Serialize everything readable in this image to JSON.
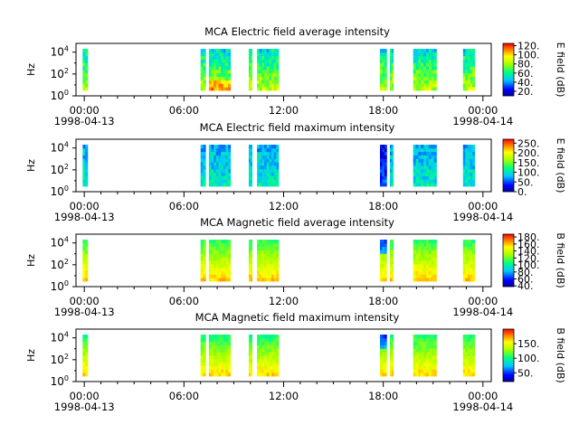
{
  "chart_data": [
    {
      "type": "heatmap",
      "title": "MCA  Electric field average intensity",
      "ylabel": "Hz",
      "colorbar_label": "E field (dB)",
      "colorbar_ticks": [
        "20.",
        "40.",
        "60.",
        "80.",
        "100.",
        "120."
      ],
      "colorbar_range": [
        10,
        125
      ],
      "y_ticks": [
        {
          "exp": 0
        },
        {
          "exp": 2
        },
        {
          "exp": 4
        }
      ],
      "x_ticks": [
        {
          "time": "00:00",
          "date": "1998-04-13"
        },
        {
          "time": "06:00",
          "date": ""
        },
        {
          "time": "12:00",
          "date": ""
        },
        {
          "time": "18:00",
          "date": ""
        },
        {
          "time": "00:00",
          "date": "1998-04-14"
        }
      ],
      "x_range_hours": [
        -0.5,
        24.5
      ],
      "y_range_log10": [
        0,
        4.8
      ],
      "data_blocks_hours": [
        [
          -0.1,
          0.2
        ],
        [
          7.0,
          7.3
        ],
        [
          7.5,
          8.8
        ],
        [
          9.9,
          10.1
        ],
        [
          10.4,
          11.7
        ],
        [
          17.8,
          18.2
        ],
        [
          18.4,
          18.6
        ],
        [
          19.8,
          21.2
        ],
        [
          22.8,
          23.5
        ]
      ],
      "data_y_range_log10": [
        0.5,
        4.3
      ],
      "level": "average-electric"
    },
    {
      "type": "heatmap",
      "title": "MCA  Electric field maximum intensity",
      "ylabel": "Hz",
      "colorbar_label": "E field (dB)",
      "colorbar_ticks": [
        "0.",
        "50.",
        "100.",
        "150.",
        "200.",
        "250."
      ],
      "colorbar_range": [
        0,
        270
      ],
      "y_ticks": [
        {
          "exp": 0
        },
        {
          "exp": 2
        },
        {
          "exp": 4
        }
      ],
      "x_ticks": [
        {
          "time": "00:00",
          "date": "1998-04-13"
        },
        {
          "time": "06:00",
          "date": ""
        },
        {
          "time": "12:00",
          "date": ""
        },
        {
          "time": "18:00",
          "date": ""
        },
        {
          "time": "00:00",
          "date": "1998-04-14"
        }
      ],
      "x_range_hours": [
        -0.5,
        24.5
      ],
      "y_range_log10": [
        0,
        4.8
      ],
      "data_blocks_hours": [
        [
          -0.1,
          0.2
        ],
        [
          7.0,
          7.3
        ],
        [
          7.5,
          8.8
        ],
        [
          9.9,
          10.1
        ],
        [
          10.4,
          11.7
        ],
        [
          17.8,
          18.2
        ],
        [
          18.4,
          18.6
        ],
        [
          19.8,
          21.2
        ],
        [
          22.8,
          23.5
        ]
      ],
      "data_y_range_log10": [
        0.5,
        4.3
      ],
      "level": "maximum-electric"
    },
    {
      "type": "heatmap",
      "title": "MCA  Magnetic field average intensity",
      "ylabel": "Hz",
      "colorbar_label": "B field (dB)",
      "colorbar_ticks": [
        "40.",
        "60.",
        "80.",
        "100.",
        "120.",
        "140.",
        "160.",
        "180."
      ],
      "colorbar_range": [
        38,
        188
      ],
      "y_ticks": [
        {
          "exp": 0
        },
        {
          "exp": 2
        },
        {
          "exp": 4
        }
      ],
      "x_ticks": [
        {
          "time": "00:00",
          "date": "1998-04-13"
        },
        {
          "time": "06:00",
          "date": ""
        },
        {
          "time": "12:00",
          "date": ""
        },
        {
          "time": "18:00",
          "date": ""
        },
        {
          "time": "00:00",
          "date": "1998-04-14"
        }
      ],
      "x_range_hours": [
        -0.5,
        24.5
      ],
      "y_range_log10": [
        0,
        4.8
      ],
      "data_blocks_hours": [
        [
          -0.1,
          0.2
        ],
        [
          7.0,
          7.3
        ],
        [
          7.5,
          8.8
        ],
        [
          9.9,
          10.1
        ],
        [
          10.4,
          11.7
        ],
        [
          17.8,
          18.2
        ],
        [
          18.4,
          18.6
        ],
        [
          19.8,
          21.2
        ],
        [
          22.8,
          23.5
        ]
      ],
      "data_y_range_log10": [
        0.5,
        4.3
      ],
      "level": "average-magnetic"
    },
    {
      "type": "heatmap",
      "title": "MCA  Magnetic field maximum intensity",
      "ylabel": "Hz",
      "colorbar_label": "B field (dB)",
      "colorbar_ticks": [
        "50.",
        "100.",
        "150."
      ],
      "colorbar_range": [
        20,
        200
      ],
      "y_ticks": [
        {
          "exp": 0
        },
        {
          "exp": 2
        },
        {
          "exp": 4
        }
      ],
      "x_ticks": [
        {
          "time": "00:00",
          "date": "1998-04-13"
        },
        {
          "time": "06:00",
          "date": ""
        },
        {
          "time": "12:00",
          "date": ""
        },
        {
          "time": "18:00",
          "date": ""
        },
        {
          "time": "00:00",
          "date": "1998-04-14"
        }
      ],
      "x_range_hours": [
        -0.5,
        24.5
      ],
      "y_range_log10": [
        0,
        4.8
      ],
      "data_blocks_hours": [
        [
          -0.1,
          0.2
        ],
        [
          7.0,
          7.3
        ],
        [
          7.5,
          8.8
        ],
        [
          9.9,
          10.1
        ],
        [
          10.4,
          11.7
        ],
        [
          17.8,
          18.2
        ],
        [
          18.4,
          18.6
        ],
        [
          19.8,
          21.2
        ],
        [
          22.8,
          23.5
        ]
      ],
      "data_y_range_log10": [
        0.5,
        4.3
      ],
      "level": "maximum-magnetic"
    }
  ]
}
